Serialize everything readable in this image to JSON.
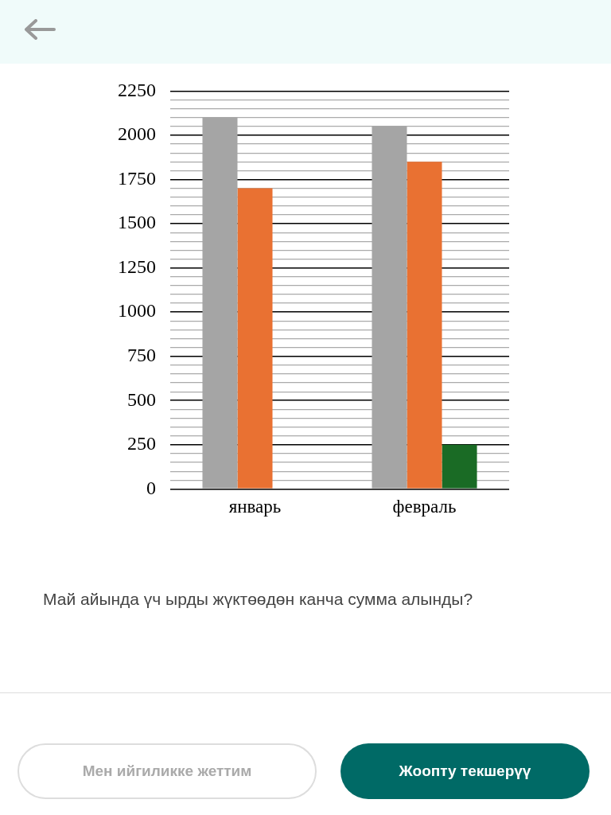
{
  "chart_data": {
    "type": "bar",
    "categories": [
      "январь",
      "февраль"
    ],
    "series": [
      {
        "color": "#a5a5a5",
        "values": [
          2100,
          2050
        ]
      },
      {
        "color": "#e97132",
        "values": [
          1700,
          1850
        ]
      },
      {
        "color": "#1a6b25",
        "values": [
          null,
          250
        ]
      }
    ],
    "ylim": [
      0,
      2250
    ],
    "yticks": [
      0,
      {
        "value": 50,
        "label": null
      },
      {
        "value": 100,
        "label": null
      },
      {
        "value": 150,
        "label": null
      },
      {
        "value": 200,
        "label": null
      },
      250,
      {
        "value": 300,
        "label": null
      },
      {
        "value": 350,
        "label": null
      },
      {
        "value": 400,
        "label": null
      },
      {
        "value": 450,
        "label": null
      },
      500,
      {
        "value": 550,
        "label": null
      },
      {
        "value": 600,
        "label": null
      },
      {
        "value": 650,
        "label": null
      },
      {
        "value": 700,
        "label": null
      },
      750,
      {
        "value": 800,
        "label": null
      },
      {
        "value": 850,
        "label": null
      },
      {
        "value": 900,
        "label": null
      },
      {
        "value": 950,
        "label": null
      },
      1000,
      {
        "value": 1050,
        "label": null
      },
      {
        "value": 1100,
        "label": null
      },
      {
        "value": 1150,
        "label": null
      },
      {
        "value": 1200,
        "label": null
      },
      1250,
      {
        "value": 1300,
        "label": null
      },
      {
        "value": 1350,
        "label": null
      },
      {
        "value": 1400,
        "label": null
      },
      {
        "value": 1450,
        "label": null
      },
      1500,
      {
        "value": 1550,
        "label": null
      },
      {
        "value": 1600,
        "label": null
      },
      {
        "value": 1650,
        "label": null
      },
      {
        "value": 1700,
        "label": null
      },
      1750,
      {
        "value": 1800,
        "label": null
      },
      {
        "value": 1850,
        "label": null
      },
      {
        "value": 1900,
        "label": null
      },
      {
        "value": 1950,
        "label": null
      },
      2000,
      {
        "value": 2050,
        "label": null
      },
      {
        "value": 2100,
        "label": null
      },
      {
        "value": 2150,
        "label": null
      },
      {
        "value": 2200,
        "label": null
      },
      2250
    ],
    "grid": "y",
    "annotations": [
      "Май айында үч ырды жүктөөдөн канча сумма алынды?",
      "Мен ийгиликке жеттим",
      "Жоопту текшерүү"
    ]
  }
}
